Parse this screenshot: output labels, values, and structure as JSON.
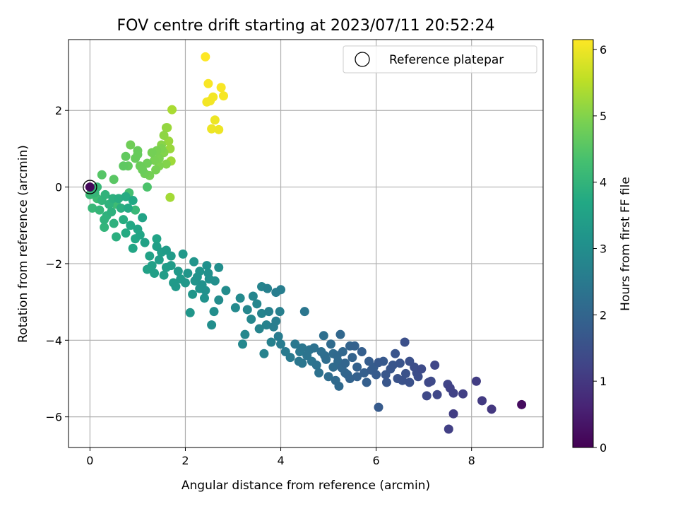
{
  "chart_data": {
    "type": "scatter",
    "title": "FOV centre drift starting at 2023/07/11 20:52:24",
    "xlabel": "Angular distance from reference (arcmin)",
    "ylabel": "Rotation from reference (arcmin)",
    "xlim": [
      -0.45,
      9.5
    ],
    "ylim": [
      -6.8,
      3.85
    ],
    "xticks": [
      0,
      2,
      4,
      6,
      8
    ],
    "yticks": [
      -6,
      -4,
      -2,
      0,
      2
    ],
    "grid": true,
    "legend": {
      "position": "top-right",
      "label": "Reference platepar"
    },
    "reference_point": {
      "x": 0,
      "y": 0
    },
    "colorbar": {
      "label": "Hours from first FF file",
      "range": [
        0,
        6.15
      ],
      "ticks": [
        0,
        1,
        2,
        3,
        4,
        5,
        6
      ],
      "colormap": "viridis"
    },
    "series": [
      {
        "points": [
          [
            9.05,
            -5.68,
            0.2
          ],
          [
            8.42,
            -5.8,
            1.0
          ],
          [
            8.22,
            -5.58,
            1.05
          ],
          [
            8.1,
            -5.07,
            1.1
          ],
          [
            7.62,
            -5.92,
            1.1
          ],
          [
            7.52,
            -6.32,
            1.15
          ],
          [
            7.82,
            -5.4,
            1.15
          ],
          [
            7.62,
            -5.38,
            1.2
          ],
          [
            7.55,
            -5.25,
            1.2
          ],
          [
            7.5,
            -5.15,
            1.25
          ],
          [
            7.28,
            -5.42,
            1.3
          ],
          [
            7.23,
            -4.65,
            1.3
          ],
          [
            7.1,
            -5.1,
            1.35
          ],
          [
            7.06,
            -5.45,
            1.35
          ],
          [
            7.15,
            -5.07,
            1.4
          ],
          [
            6.95,
            -4.75,
            1.4
          ],
          [
            6.88,
            -4.95,
            1.45
          ],
          [
            6.8,
            -4.7,
            1.45
          ],
          [
            6.7,
            -4.55,
            1.5
          ],
          [
            6.6,
            -4.05,
            1.5
          ],
          [
            6.62,
            -4.87,
            1.55
          ],
          [
            6.55,
            -5.05,
            1.55
          ],
          [
            6.5,
            -4.6,
            1.6
          ],
          [
            6.4,
            -4.35,
            1.6
          ],
          [
            6.3,
            -4.75,
            1.65
          ],
          [
            6.22,
            -5.1,
            1.65
          ],
          [
            6.15,
            -4.55,
            1.7
          ],
          [
            6.05,
            -4.58,
            1.7
          ],
          [
            6.0,
            -4.9,
            1.75
          ],
          [
            6.05,
            -5.75,
            1.75
          ],
          [
            5.95,
            -4.7,
            1.8
          ],
          [
            5.85,
            -4.55,
            1.8
          ],
          [
            5.75,
            -4.85,
            1.85
          ],
          [
            5.7,
            -4.3,
            1.85
          ],
          [
            5.6,
            -4.7,
            1.9
          ],
          [
            5.55,
            -4.15,
            1.9
          ],
          [
            5.5,
            -4.45,
            1.95
          ],
          [
            5.45,
            -5.0,
            1.95
          ],
          [
            5.4,
            -4.9,
            2.0
          ],
          [
            5.35,
            -4.6,
            2.0
          ],
          [
            5.3,
            -4.3,
            2.05
          ],
          [
            5.25,
            -3.85,
            2.05
          ],
          [
            5.22,
            -5.2,
            2.1
          ],
          [
            5.18,
            -4.4,
            2.1
          ],
          [
            5.1,
            -4.7,
            2.15
          ],
          [
            5.05,
            -4.1,
            2.15
          ],
          [
            5.0,
            -4.95,
            2.2
          ],
          [
            4.95,
            -4.5,
            2.2
          ],
          [
            4.9,
            -3.88,
            2.25
          ],
          [
            4.85,
            -4.3,
            2.25
          ],
          [
            4.8,
            -4.85,
            2.3
          ],
          [
            4.7,
            -4.2,
            2.3
          ],
          [
            4.65,
            -4.55,
            2.35
          ],
          [
            4.55,
            -4.4,
            2.35
          ],
          [
            4.5,
            -3.25,
            2.4
          ],
          [
            4.45,
            -4.6,
            2.4
          ],
          [
            4.4,
            -4.3,
            2.45
          ],
          [
            4.3,
            -4.1,
            2.45
          ],
          [
            4.2,
            -4.45,
            2.5
          ],
          [
            4.1,
            -4.3,
            2.5
          ],
          [
            4.0,
            -4.1,
            2.55
          ],
          [
            3.95,
            -3.9,
            2.55
          ],
          [
            3.9,
            -3.5,
            2.6
          ],
          [
            3.85,
            -3.65,
            2.6
          ],
          [
            3.8,
            -4.05,
            2.65
          ],
          [
            3.75,
            -3.25,
            2.65
          ],
          [
            3.7,
            -3.6,
            2.7
          ],
          [
            3.65,
            -4.35,
            2.7
          ],
          [
            3.6,
            -2.6,
            2.75
          ],
          [
            3.55,
            -3.7,
            2.75
          ],
          [
            3.5,
            -3.05,
            2.8
          ],
          [
            3.3,
            -3.2,
            2.8
          ],
          [
            3.25,
            -3.85,
            2.85
          ],
          [
            3.2,
            -4.1,
            2.85
          ],
          [
            3.15,
            -2.9,
            2.9
          ],
          [
            3.05,
            -3.15,
            2.9
          ],
          [
            2.85,
            -2.7,
            2.95
          ],
          [
            2.7,
            -2.95,
            2.95
          ],
          [
            2.6,
            -3.25,
            3.0
          ],
          [
            2.55,
            -3.6,
            3.0
          ],
          [
            2.5,
            -2.4,
            3.05
          ],
          [
            2.45,
            -2.05,
            3.05
          ],
          [
            2.4,
            -2.9,
            3.1
          ],
          [
            2.35,
            -2.55,
            3.1
          ],
          [
            2.3,
            -2.2,
            3.15
          ],
          [
            2.2,
            -2.45,
            3.15
          ],
          [
            2.15,
            -2.8,
            3.2
          ],
          [
            2.1,
            -3.28,
            3.2
          ],
          [
            2.0,
            -2.5,
            3.25
          ],
          [
            1.95,
            -1.75,
            3.25
          ],
          [
            1.85,
            -2.2,
            3.3
          ],
          [
            1.8,
            -2.6,
            3.3
          ],
          [
            1.7,
            -2.05,
            3.35
          ],
          [
            1.6,
            -1.65,
            3.35
          ],
          [
            1.55,
            -2.3,
            3.4
          ],
          [
            1.45,
            -1.9,
            3.4
          ],
          [
            1.4,
            -1.55,
            3.45
          ],
          [
            1.35,
            -2.25,
            3.45
          ],
          [
            1.25,
            -1.8,
            3.5
          ],
          [
            1.15,
            -1.45,
            3.5
          ],
          [
            3.9,
            -2.75,
            2.58
          ],
          [
            4.0,
            -2.68,
            2.6
          ],
          [
            3.72,
            -2.65,
            2.66
          ],
          [
            3.6,
            -3.3,
            2.72
          ],
          [
            3.98,
            -3.25,
            2.62
          ],
          [
            3.42,
            -2.85,
            2.78
          ],
          [
            3.38,
            -3.45,
            2.82
          ],
          [
            4.38,
            -4.55,
            2.44
          ],
          [
            4.75,
            -4.65,
            2.32
          ],
          [
            5.1,
            -4.35,
            2.14
          ],
          [
            5.45,
            -4.15,
            1.98
          ],
          [
            5.6,
            -4.95,
            1.9
          ],
          [
            5.8,
            -5.1,
            1.84
          ],
          [
            5.9,
            -4.78,
            1.78
          ],
          [
            6.2,
            -4.9,
            1.66
          ],
          [
            6.35,
            -4.65,
            1.62
          ],
          [
            6.45,
            -5.0,
            1.58
          ],
          [
            6.7,
            -5.1,
            1.52
          ],
          [
            6.85,
            -4.85,
            1.46
          ],
          [
            5.15,
            -5.05,
            2.12
          ],
          [
            5.2,
            -4.55,
            2.11
          ],
          [
            5.35,
            -4.85,
            2.02
          ],
          [
            5.28,
            -4.72,
            2.04
          ],
          [
            4.92,
            -4.4,
            2.21
          ],
          [
            4.6,
            -4.25,
            2.36
          ],
          [
            4.45,
            -4.2,
            2.42
          ],
          [
            2.3,
            -2.65,
            3.13
          ],
          [
            2.25,
            -2.35,
            3.14
          ],
          [
            2.05,
            -2.25,
            3.22
          ],
          [
            1.9,
            -2.4,
            3.28
          ],
          [
            2.18,
            -1.95,
            3.17
          ],
          [
            2.42,
            -2.7,
            3.08
          ],
          [
            2.48,
            -2.25,
            3.06
          ],
          [
            2.62,
            -2.45,
            3.02
          ],
          [
            2.7,
            -2.1,
            2.99
          ],
          [
            1.75,
            -2.5,
            3.32
          ],
          [
            1.6,
            -2.1,
            3.36
          ],
          [
            1.5,
            -1.7,
            3.39
          ],
          [
            1.3,
            -2.05,
            3.47
          ],
          [
            1.2,
            -2.15,
            3.5
          ],
          [
            1.7,
            -1.8,
            3.34
          ],
          [
            1.4,
            -1.35,
            3.55
          ],
          [
            1.05,
            -1.25,
            3.6
          ],
          [
            0.95,
            -1.35,
            3.65
          ],
          [
            0.85,
            -1.0,
            3.7
          ],
          [
            0.75,
            -1.2,
            3.75
          ],
          [
            0.7,
            -0.85,
            3.8
          ],
          [
            0.65,
            -0.55,
            3.85
          ],
          [
            0.55,
            -1.3,
            3.85
          ],
          [
            0.5,
            -0.95,
            3.9
          ],
          [
            0.45,
            -0.65,
            3.9
          ],
          [
            0.4,
            -0.45,
            3.95
          ],
          [
            0.35,
            -0.75,
            3.95
          ],
          [
            0.3,
            -1.05,
            4.0
          ],
          [
            0.25,
            -0.35,
            4.0
          ],
          [
            0.2,
            -0.6,
            4.05
          ],
          [
            0.1,
            -0.15,
            4.05
          ],
          [
            0.05,
            -0.55,
            4.1
          ],
          [
            0.15,
            0.0,
            4.1
          ],
          [
            0.0,
            -0.2,
            4.15
          ],
          [
            0.9,
            -1.6,
            3.62
          ],
          [
            1.0,
            -1.1,
            3.6
          ],
          [
            1.1,
            -0.8,
            3.56
          ],
          [
            0.8,
            -0.55,
            3.72
          ],
          [
            0.9,
            -0.35,
            3.68
          ],
          [
            0.6,
            -0.3,
            3.82
          ],
          [
            0.48,
            -0.3,
            3.88
          ],
          [
            0.3,
            -0.85,
            3.96
          ],
          [
            0.32,
            -0.2,
            3.97
          ],
          [
            0.75,
            -0.25,
            3.76
          ],
          [
            1.2,
            0.0,
            4.4
          ],
          [
            0.82,
            -0.15,
            4.3
          ],
          [
            0.15,
            -0.3,
            4.2
          ],
          [
            0.55,
            -0.45,
            4.2
          ],
          [
            0.95,
            -0.6,
            4.1
          ],
          [
            0.25,
            0.32,
            4.5
          ],
          [
            0.5,
            0.2,
            4.55
          ],
          [
            0.7,
            0.55,
            4.6
          ],
          [
            0.8,
            0.55,
            4.65
          ],
          [
            0.75,
            0.8,
            4.65
          ],
          [
            0.95,
            0.75,
            4.7
          ],
          [
            1.0,
            0.85,
            4.7
          ],
          [
            1.05,
            0.55,
            4.75
          ],
          [
            1.1,
            0.45,
            4.75
          ],
          [
            1.15,
            0.35,
            4.8
          ],
          [
            0.85,
            1.1,
            4.8
          ],
          [
            1.25,
            0.3,
            4.85
          ],
          [
            1.3,
            0.9,
            4.85
          ],
          [
            1.35,
            0.7,
            4.9
          ],
          [
            1.4,
            0.95,
            4.9
          ],
          [
            1.45,
            0.55,
            4.95
          ],
          [
            1.5,
            1.0,
            4.95
          ],
          [
            1.55,
            0.9,
            5.0
          ],
          [
            1.6,
            0.6,
            5.0
          ],
          [
            1.5,
            1.1,
            5.05
          ],
          [
            1.55,
            1.35,
            5.1
          ],
          [
            1.6,
            1.55,
            5.15
          ],
          [
            1.65,
            1.2,
            5.2
          ],
          [
            1.68,
            1.0,
            5.2
          ],
          [
            1.7,
            0.68,
            5.25
          ],
          [
            1.62,
            1.55,
            5.3
          ],
          [
            1.68,
            -0.27,
            5.3
          ],
          [
            1.72,
            2.02,
            5.35
          ],
          [
            1.0,
            0.95,
            4.72
          ],
          [
            1.2,
            0.62,
            4.78
          ],
          [
            1.45,
            0.75,
            4.92
          ],
          [
            1.38,
            0.45,
            4.88
          ],
          [
            2.42,
            3.4,
            6.15
          ],
          [
            2.45,
            2.22,
            6.05
          ],
          [
            2.48,
            2.7,
            6.1
          ],
          [
            2.52,
            2.25,
            6.05
          ],
          [
            2.55,
            1.52,
            6.0
          ],
          [
            2.58,
            2.35,
            6.05
          ],
          [
            2.62,
            1.75,
            6.0
          ],
          [
            2.7,
            1.5,
            6.0
          ],
          [
            2.75,
            2.6,
            6.1
          ],
          [
            2.8,
            2.38,
            6.08
          ]
        ]
      }
    ]
  }
}
